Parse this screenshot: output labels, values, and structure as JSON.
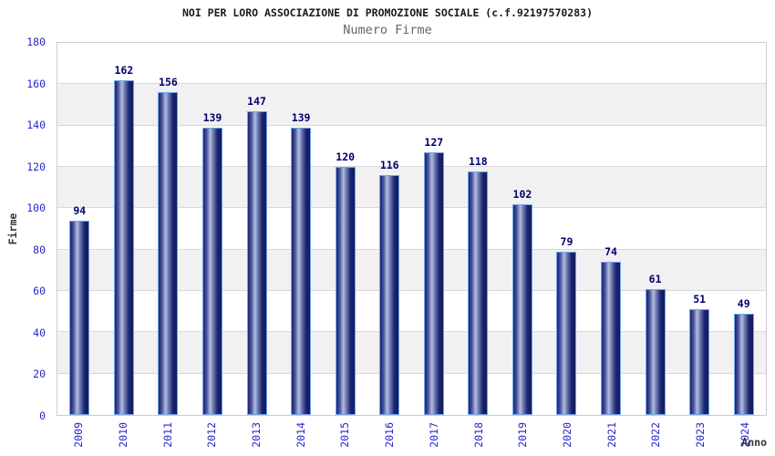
{
  "chart_data": {
    "type": "bar",
    "title": "NOI PER LORO ASSOCIAZIONE DI PROMOZIONE SOCIALE (c.f.92197570283)",
    "subtitle": "Numero Firme",
    "xlabel": "Anno",
    "ylabel": "Firme",
    "categories": [
      "2009",
      "2010",
      "2011",
      "2012",
      "2013",
      "2014",
      "2015",
      "2016",
      "2017",
      "2018",
      "2019",
      "2020",
      "2021",
      "2022",
      "2023",
      "2024"
    ],
    "values": [
      94,
      162,
      156,
      139,
      147,
      139,
      120,
      116,
      127,
      118,
      102,
      79,
      74,
      61,
      51,
      49
    ],
    "ylim": [
      0,
      180
    ],
    "ytick_step": 20,
    "y_ticks": [
      180,
      160,
      140,
      120,
      100,
      80,
      60,
      40,
      20,
      0
    ],
    "grid": true,
    "legend_position": "none",
    "band_fill_alternating": true,
    "colors": {
      "title_color": "#1a1a1a",
      "subtitle_color": "#666666",
      "tick_label": "#2626cc",
      "value_label": "#000070",
      "axis_title_color": "#333333",
      "band_gray": "#f1f1f1",
      "band_white": "#ffffff",
      "grid_line": "#d9d9d9",
      "axis_border": "#cccccc",
      "bar_dark": "#1b2470",
      "bar_darker": "#131b5c",
      "bar_highlight": "#b5bddf",
      "bar_outline": "#72a4ec"
    }
  }
}
